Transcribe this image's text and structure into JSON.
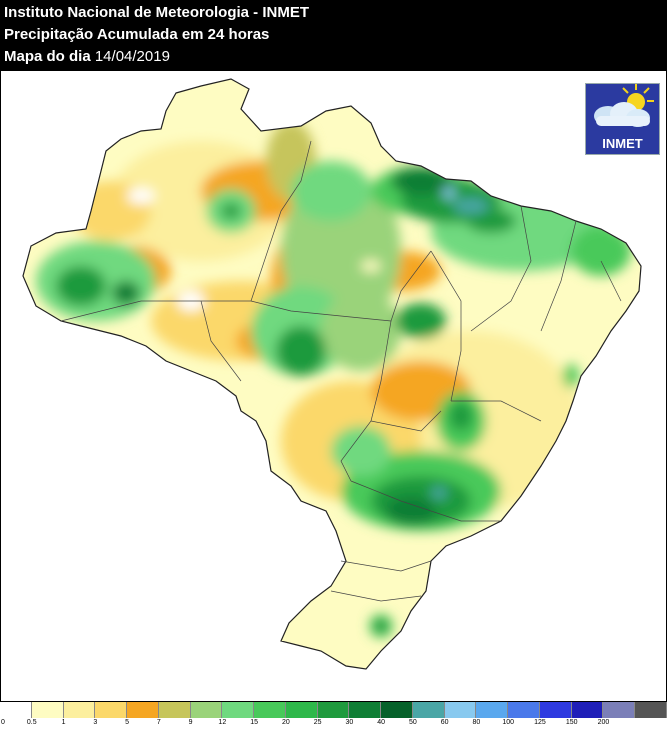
{
  "header": {
    "line1": "Instituto Nacional de Meteorologia - INMET",
    "line2": "Precipitação Acumulada em 24 horas",
    "line3_prefix": "Mapa do dia ",
    "line3_date": "14/04/2019"
  },
  "logo": {
    "text": "INMET",
    "icon": "sun-cloud-icon"
  },
  "legend": {
    "labels": [
      "0",
      "0.5",
      "1",
      "3",
      "5",
      "7",
      "9",
      "12",
      "15",
      "20",
      "25",
      "30",
      "40",
      "50",
      "60",
      "80",
      "100",
      "125",
      "150",
      "200"
    ],
    "colors": [
      "#ffffff",
      "#fefcc2",
      "#fcef9e",
      "#fbd86a",
      "#f5a623",
      "#c6c55b",
      "#9ad37a",
      "#6fd97f",
      "#48c95a",
      "#2eb84a",
      "#1f9a3d",
      "#0f7e35",
      "#06612a",
      "#4aa6a6",
      "#88c9ef",
      "#5aa8ee",
      "#4a79ea",
      "#2e3ae0",
      "#1f1fb8",
      "#7b7fb8",
      "#555555"
    ]
  },
  "map": {
    "colors": {
      "land_light": "#fefcc2",
      "land_yellow": "#fcef9e",
      "land_orange": "#f5a623",
      "green_light": "#9ad37a",
      "green_mid": "#48c95a",
      "green_dark": "#0f7e35",
      "teal": "#4aa6a6",
      "border": "#333333"
    }
  }
}
